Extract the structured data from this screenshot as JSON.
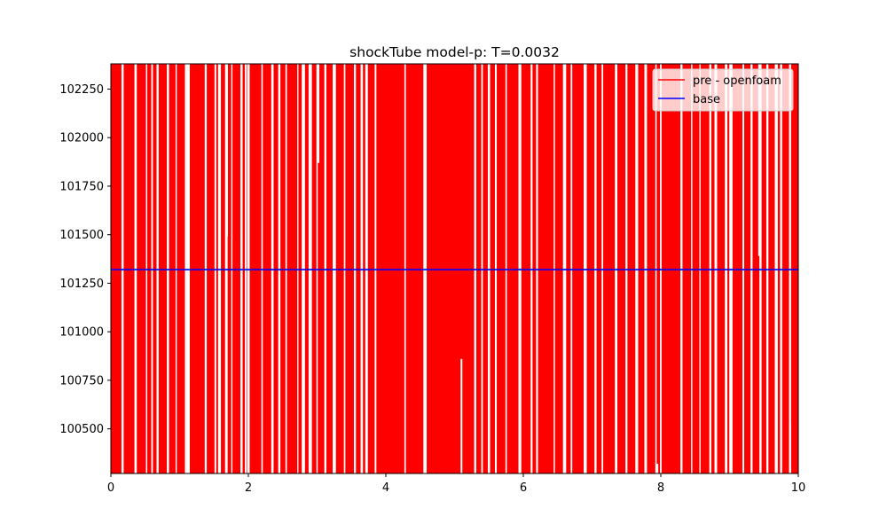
{
  "chart_data": {
    "type": "line",
    "title": "shockTube model-p: T=0.0032",
    "xlabel": "",
    "ylabel": "",
    "xlim": [
      0,
      10
    ],
    "ylim": [
      100270,
      102380
    ],
    "grid": true,
    "legend_position": "top-right",
    "x_ticks": [
      0,
      2,
      4,
      6,
      8,
      10
    ],
    "x_tick_labels": [
      "0",
      "2",
      "4",
      "6",
      "8",
      "10"
    ],
    "y_ticks": [
      100500,
      100750,
      101000,
      101250,
      101500,
      101750,
      102000,
      102250
    ],
    "y_tick_labels": [
      "100500",
      "100750",
      "101000",
      "101250",
      "101500",
      "101750",
      "102000",
      "102250"
    ],
    "series": [
      {
        "name": "pre - openfoam",
        "color": "#ff0000",
        "style": "dense oscillating line spanning the full y-range",
        "gaps_x": [
          0.17,
          0.36,
          0.52,
          0.6,
          0.68,
          0.83,
          0.95,
          1.1,
          1.13,
          1.38,
          1.52,
          1.58,
          1.68,
          1.76,
          1.9,
          1.96,
          2.0,
          2.2,
          2.35,
          2.45,
          2.55,
          2.72,
          2.8,
          2.9,
          3.0,
          3.12,
          3.25,
          3.4,
          3.55,
          3.65,
          3.72,
          3.85,
          4.28,
          4.57,
          5.3,
          5.4,
          5.5,
          5.6,
          5.75,
          5.95,
          6.12,
          6.2,
          6.45,
          6.6,
          6.7,
          6.9,
          7.05,
          7.15,
          7.35,
          7.5,
          7.65,
          7.78,
          7.93,
          8.0,
          8.3,
          8.45,
          8.57,
          8.72,
          8.8,
          8.95,
          9.02,
          9.2,
          9.32,
          9.45,
          9.55,
          9.68,
          9.75,
          9.88
        ],
        "spikes": [
          {
            "x": 3.02,
            "y": 101870
          },
          {
            "x": 1.69,
            "y": 101490
          },
          {
            "x": 5.1,
            "y": 100860
          },
          {
            "x": 7.95,
            "y": 100320
          },
          {
            "x": 8.8,
            "y": 101800
          },
          {
            "x": 9.43,
            "y": 101390
          },
          {
            "x": 9.88,
            "y": 100530
          }
        ]
      },
      {
        "name": "base",
        "color": "#0000ff",
        "x": [
          0,
          10
        ],
        "y": [
          101320,
          101320
        ]
      }
    ]
  }
}
